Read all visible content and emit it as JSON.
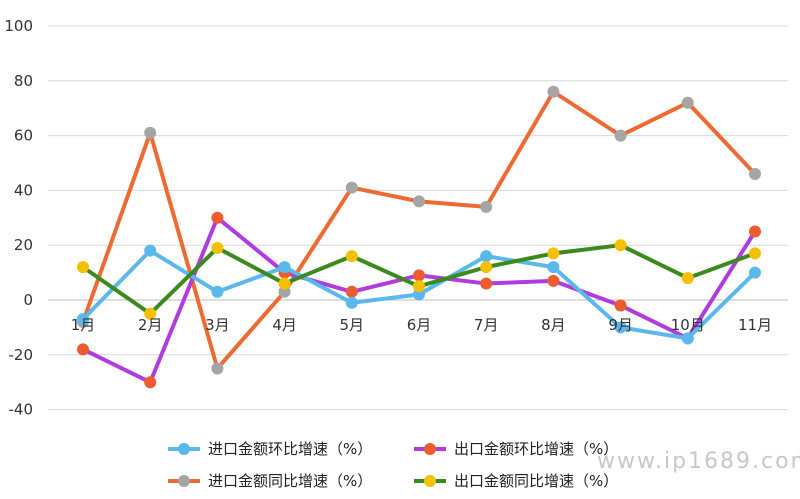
{
  "watermark": "www.ip1689.com",
  "chart_data": {
    "type": "line",
    "categories": [
      "1月",
      "2月",
      "3月",
      "4月",
      "5月",
      "6月",
      "7月",
      "8月",
      "9月",
      "10月",
      "11月"
    ],
    "ylim": [
      -40,
      100
    ],
    "yticks": [
      -40,
      -20,
      0,
      20,
      40,
      60,
      80,
      100
    ],
    "grid": true,
    "legend_position": "bottom",
    "series": [
      {
        "name": "进口金额同比增速（%）",
        "line_color": "#ED6A32",
        "marker_color": "#A5A5A5",
        "values": [
          -8,
          61,
          -25,
          3,
          41,
          36,
          34,
          76,
          60,
          72,
          46
        ]
      },
      {
        "name": "出口金额环比增速（%）",
        "line_color": "#B03CE0",
        "marker_color": "#ED5C2E",
        "values": [
          -18,
          -30,
          30,
          10,
          3,
          9,
          6,
          7,
          -2,
          -14,
          25
        ]
      },
      {
        "name": "进口金额环比增速（%）",
        "line_color": "#5BB8EC",
        "marker_color": "#5BB8EC",
        "values": [
          -7,
          18,
          3,
          12,
          -1,
          2,
          16,
          12,
          -10,
          -14,
          10
        ]
      },
      {
        "name": "出口金额同比增速（%）",
        "line_color": "#3A8A1E",
        "marker_color": "#F5C000",
        "values": [
          12,
          -5,
          19,
          6,
          16,
          5,
          12,
          17,
          20,
          8,
          17
        ]
      }
    ],
    "legend_order": [
      2,
      1,
      0,
      3
    ]
  }
}
